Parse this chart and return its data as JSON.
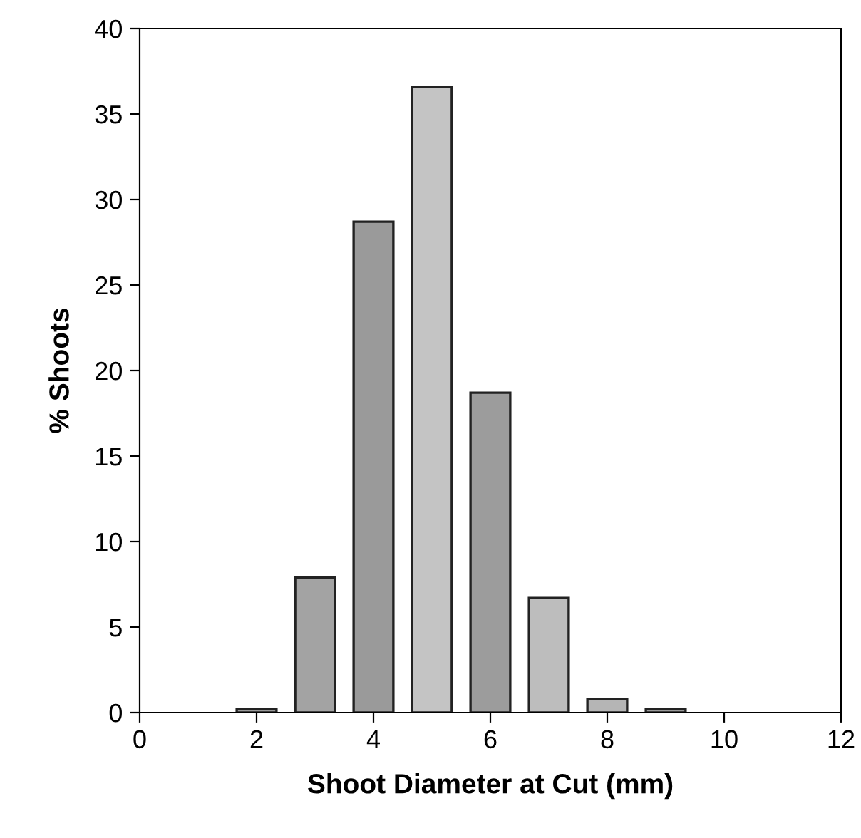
{
  "chart_data": {
    "type": "bar",
    "xlabel": "Shoot Diameter at Cut (mm)",
    "ylabel": "% Shoots",
    "x": [
      2,
      3,
      4,
      5,
      6,
      7,
      8,
      9
    ],
    "values": [
      0.2,
      7.9,
      28.7,
      36.6,
      18.7,
      6.7,
      0.8,
      0.2
    ],
    "colors": [
      "#999999",
      "#a3a3a3",
      "#9a9a9a",
      "#c4c4c4",
      "#9c9c9c",
      "#bdbdbd",
      "#b5b5b5",
      "#999999"
    ],
    "xlim": [
      0,
      12
    ],
    "xticks": [
      0,
      2,
      4,
      6,
      8,
      10,
      12
    ],
    "ylim": [
      0,
      40
    ],
    "yticks": [
      0,
      5,
      10,
      15,
      20,
      25,
      30,
      35,
      40
    ],
    "grid": false,
    "legend": false
  }
}
